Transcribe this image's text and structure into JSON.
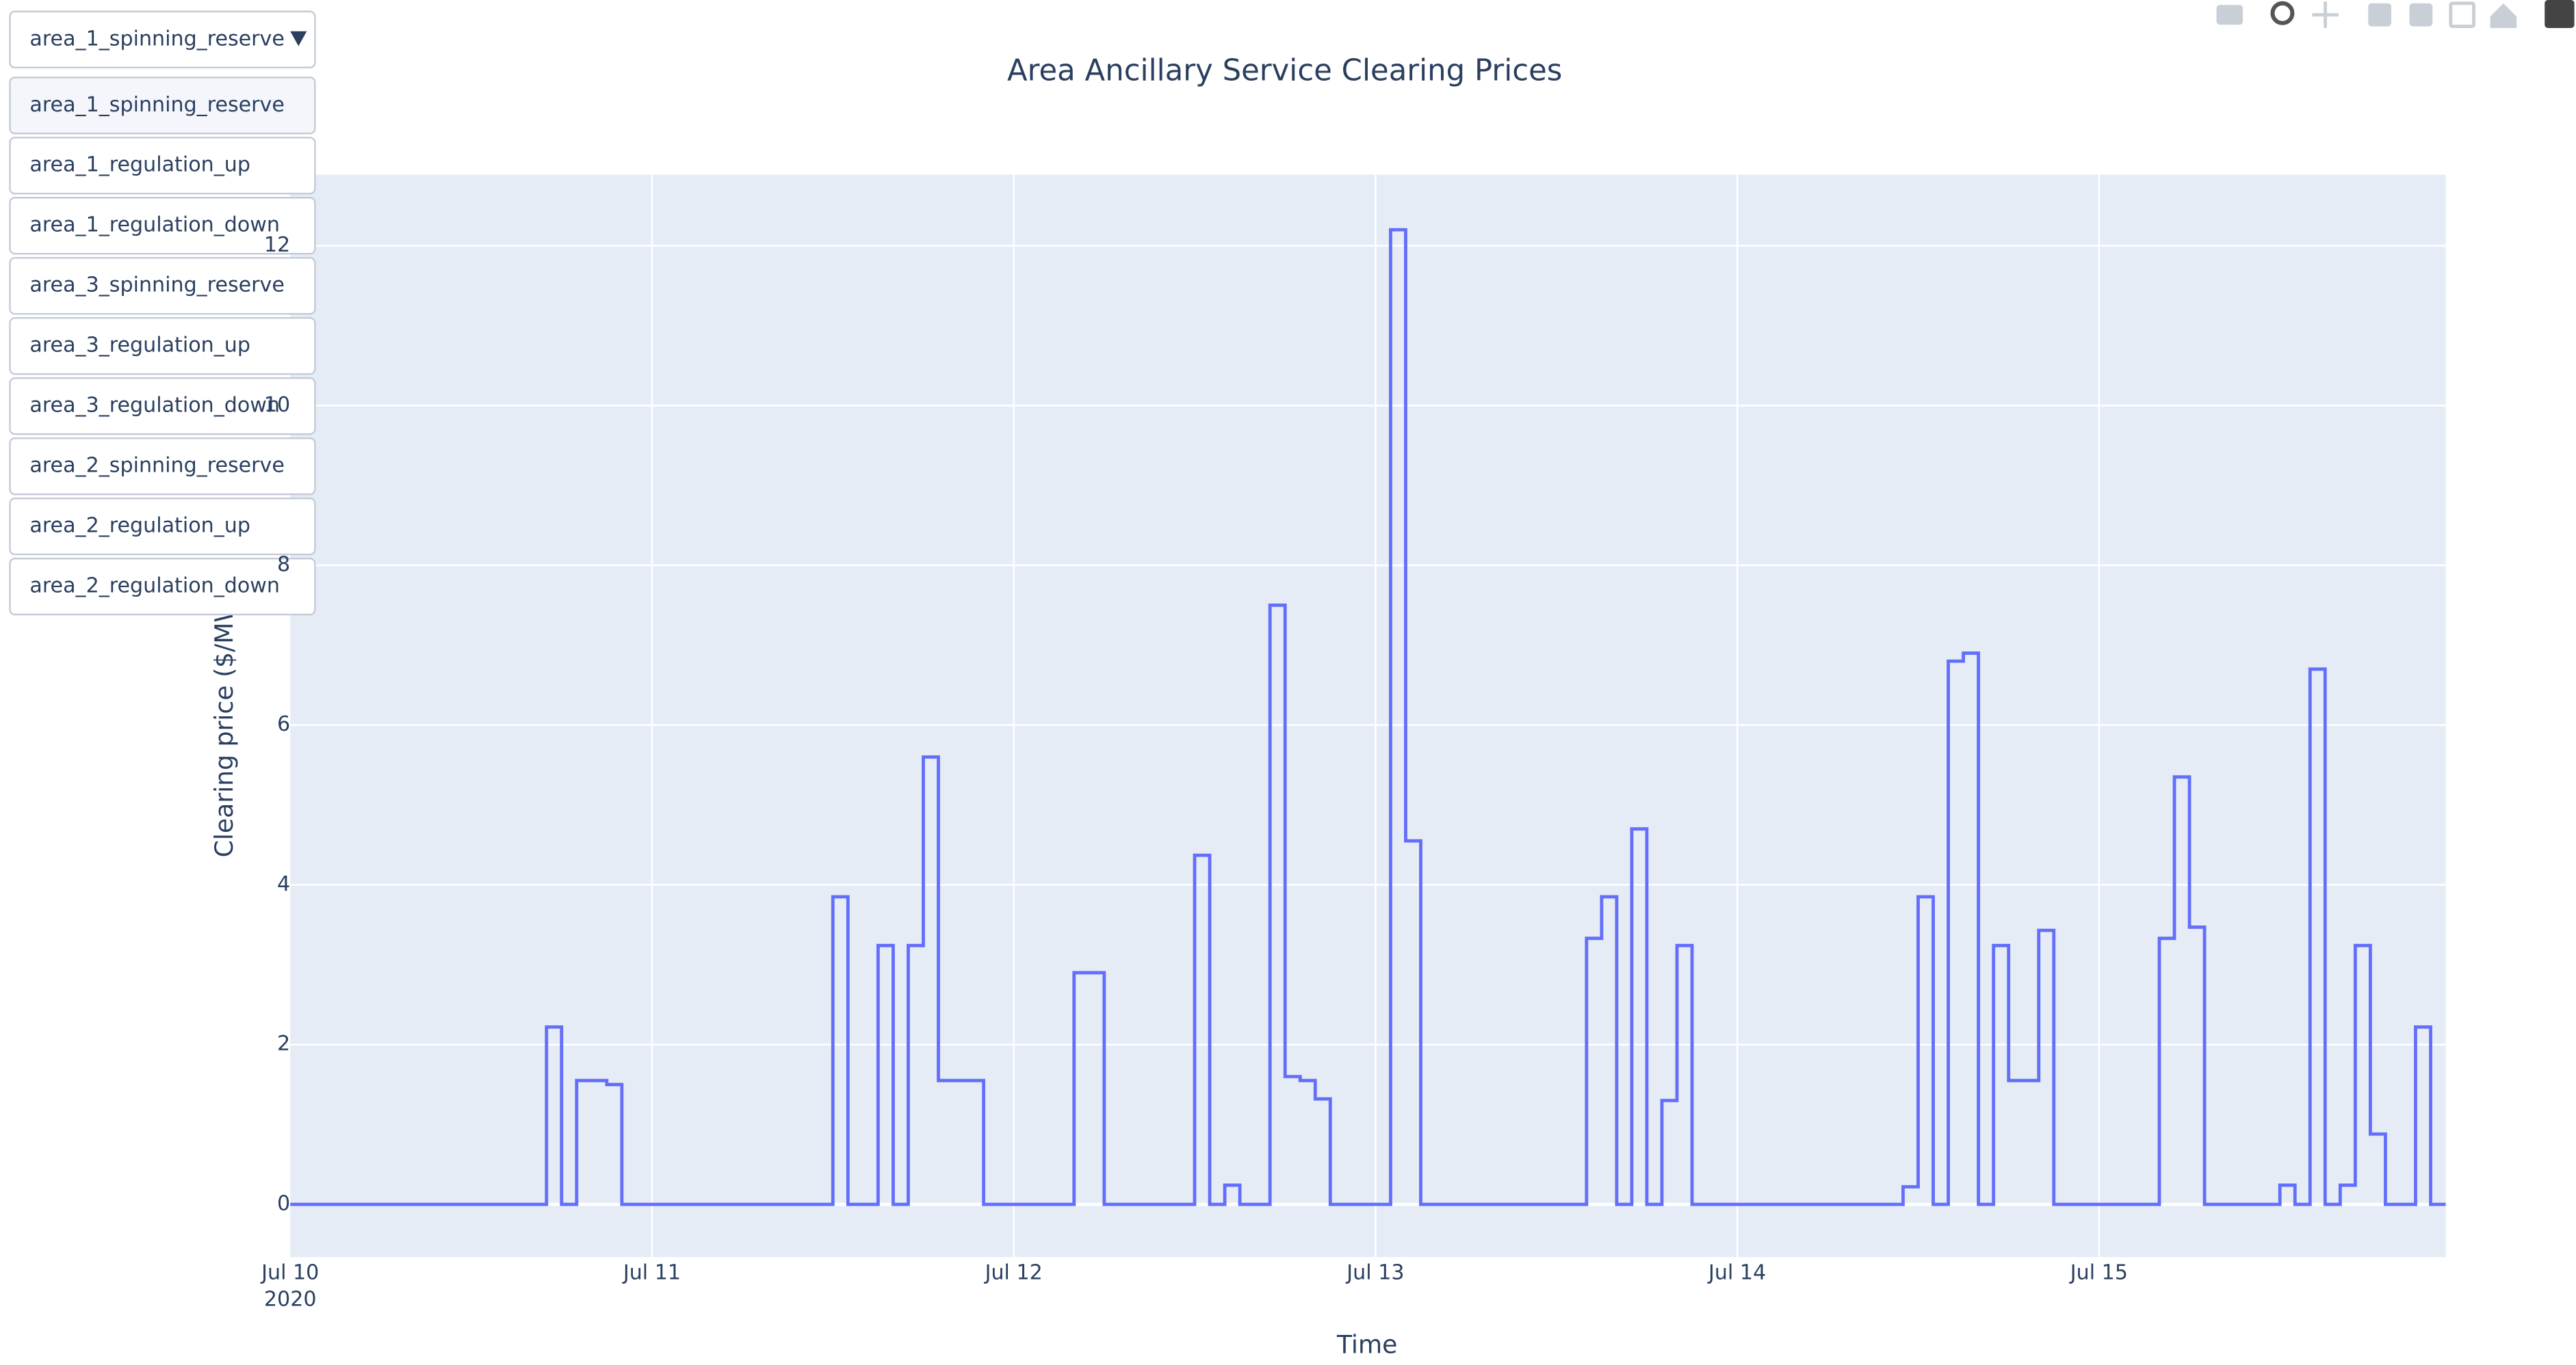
{
  "chart_data": {
    "type": "line",
    "line_shape": "hv",
    "title": "Area Ancillary Service Clearing Prices",
    "x_label": "Time",
    "y_label": "Clearing price ($/MWh)",
    "x": [
      "2020-07-10T00:00",
      "2020-07-10T17:00",
      "2020-07-10T18:00",
      "2020-07-10T19:00",
      "2020-07-10T21:00",
      "2020-07-10T22:00",
      "2020-07-11T12:00",
      "2020-07-11T13:00",
      "2020-07-11T15:00",
      "2020-07-11T16:00",
      "2020-07-11T17:00",
      "2020-07-11T18:00",
      "2020-07-11T19:00",
      "2020-07-11T22:00",
      "2020-07-12T04:00",
      "2020-07-12T06:00",
      "2020-07-12T12:00",
      "2020-07-12T13:00",
      "2020-07-12T14:00",
      "2020-07-12T15:00",
      "2020-07-12T17:00",
      "2020-07-12T18:00",
      "2020-07-12T19:00",
      "2020-07-12T20:00",
      "2020-07-12T21:00",
      "2020-07-13T01:00",
      "2020-07-13T02:00",
      "2020-07-13T03:00",
      "2020-07-13T14:00",
      "2020-07-13T15:00",
      "2020-07-13T16:00",
      "2020-07-13T17:00",
      "2020-07-13T18:00",
      "2020-07-13T19:00",
      "2020-07-13T20:00",
      "2020-07-13T21:00",
      "2020-07-14T11:00",
      "2020-07-14T12:00",
      "2020-07-14T13:00",
      "2020-07-14T14:00",
      "2020-07-14T15:00",
      "2020-07-14T16:00",
      "2020-07-14T17:00",
      "2020-07-14T18:00",
      "2020-07-14T20:00",
      "2020-07-14T21:00",
      "2020-07-15T04:00",
      "2020-07-15T05:00",
      "2020-07-15T06:00",
      "2020-07-15T07:00",
      "2020-07-15T12:00",
      "2020-07-15T13:00",
      "2020-07-15T14:00",
      "2020-07-15T15:00",
      "2020-07-15T16:00",
      "2020-07-15T17:00",
      "2020-07-15T18:00",
      "2020-07-15T19:00",
      "2020-07-15T21:00",
      "2020-07-15T22:00",
      "2020-07-15T23:00"
    ],
    "series": [
      {
        "name": "area_1_spinning_reserve",
        "color": "#636efa",
        "values": [
          0,
          2.22,
          0,
          1.55,
          1.5,
          0,
          3.85,
          0,
          3.24,
          0,
          3.24,
          5.6,
          1.55,
          0,
          2.9,
          0,
          4.37,
          0,
          0.24,
          0,
          7.5,
          1.6,
          1.55,
          1.32,
          0,
          12.2,
          4.55,
          0,
          3.33,
          3.85,
          0,
          4.7,
          0,
          1.3,
          3.24,
          0,
          0.22,
          3.85,
          0,
          6.8,
          6.9,
          0,
          3.24,
          1.55,
          3.43,
          0,
          3.33,
          5.35,
          3.47,
          0,
          0.24,
          0,
          6.7,
          0,
          0.24,
          3.24,
          0.88,
          0,
          2.22,
          0,
          0
        ]
      }
    ],
    "xlim": [
      "2020-07-10T00:00",
      "2020-07-15T23:00"
    ],
    "xticks": [
      {
        "value": "2020-07-10T00:00",
        "label": "Jul 10"
      },
      {
        "value": "2020-07-11T00:00",
        "label": "Jul 11"
      },
      {
        "value": "2020-07-12T00:00",
        "label": "Jul 12"
      },
      {
        "value": "2020-07-13T00:00",
        "label": "Jul 13"
      },
      {
        "value": "2020-07-14T00:00",
        "label": "Jul 14"
      },
      {
        "value": "2020-07-15T00:00",
        "label": "Jul 15"
      }
    ],
    "x_year_label": "2020",
    "ylim": [
      -0.66,
      12.89
    ],
    "yticks": [
      0,
      2,
      4,
      6,
      8,
      10,
      12
    ],
    "grid": true
  },
  "dropdown": {
    "selected": "area_1_spinning_reserve",
    "options": [
      "area_1_spinning_reserve",
      "area_1_regulation_up",
      "area_1_regulation_down",
      "area_3_spinning_reserve",
      "area_3_regulation_up",
      "area_3_regulation_down",
      "area_2_spinning_reserve",
      "area_2_regulation_up",
      "area_2_regulation_down"
    ]
  }
}
